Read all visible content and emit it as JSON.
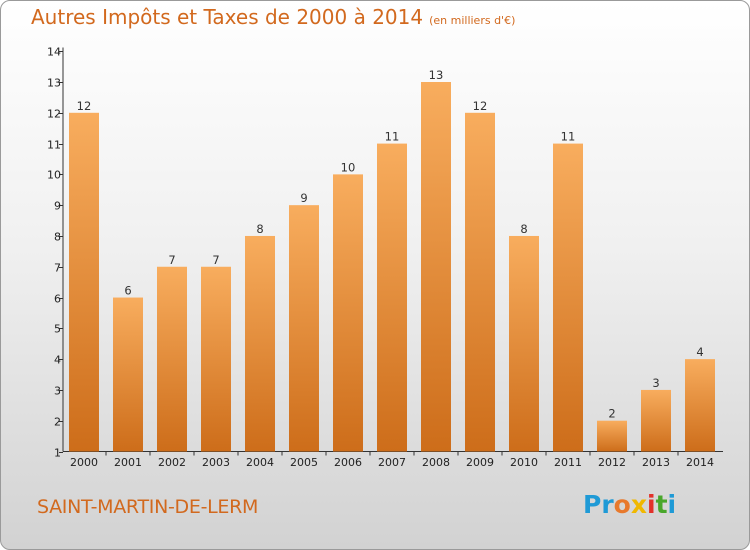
{
  "title": "Autres Impôts et Taxes de 2000 à 2014",
  "subtitle": "(en milliers d'€)",
  "location_name": "SAINT-MARTIN-DE-LERM",
  "logo": {
    "letters": [
      "P",
      "r",
      "o",
      "x",
      "i",
      "t",
      "i"
    ],
    "colors": [
      "#1f9ad6",
      "#1f9ad6",
      "#e8792c",
      "#f0b800",
      "#e2312a",
      "#49a72b",
      "#1f9ad6"
    ]
  },
  "colors": {
    "bar_light": "#f8ad5e",
    "bar_dark": "#cd6d1a",
    "accent": "#d2691e"
  },
  "chart_data": {
    "type": "bar",
    "title": "Autres Impôts et Taxes de 2000 à 2014",
    "subtitle": "(en milliers d'€)",
    "categories": [
      "2000",
      "2001",
      "2002",
      "2003",
      "2004",
      "2005",
      "2006",
      "2007",
      "2008",
      "2009",
      "2010",
      "2011",
      "2012",
      "2013",
      "2014"
    ],
    "values": [
      12,
      6,
      7,
      7,
      8,
      9,
      10,
      11,
      13,
      12,
      8,
      11,
      2,
      3,
      4
    ],
    "y_ticks": [
      "1",
      "2",
      "3",
      "4",
      "5",
      "6",
      "7",
      "8",
      "9",
      "10",
      "11",
      "12",
      "13",
      "14"
    ],
    "ylim": [
      1,
      14
    ],
    "grid": false,
    "legend": "none"
  }
}
